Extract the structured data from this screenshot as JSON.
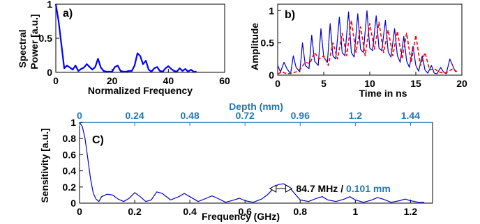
{
  "chart_data": [
    {
      "panel": "a)",
      "type": "line",
      "xlabel": "Normalized Frequency",
      "ylabel": [
        "Spectral",
        "Power [a.u.]"
      ],
      "xlim": [
        0,
        60
      ],
      "ylim": [
        0,
        1
      ],
      "xticks": [
        "0",
        "20",
        "40",
        "60"
      ],
      "yticks": [
        "0",
        "0.5",
        "1"
      ],
      "series": [
        {
          "color": "#0000ff",
          "x": [
            0,
            1,
            2,
            3,
            4,
            5,
            6,
            7,
            8,
            9,
            10,
            11,
            12,
            13,
            14,
            15,
            16,
            17,
            18,
            19,
            20,
            21,
            22,
            23,
            24,
            25,
            26,
            27,
            28,
            29,
            30,
            31,
            32,
            33,
            34,
            35,
            36,
            37,
            38,
            39,
            40,
            41,
            42,
            43,
            44,
            45,
            46,
            47,
            48,
            49,
            50
          ],
          "y": [
            1.0,
            0.75,
            0.4,
            0.06,
            0.1,
            0.07,
            0.04,
            0.1,
            0.02,
            0.05,
            0.07,
            0.12,
            0.08,
            0.04,
            0.08,
            0.2,
            0.07,
            0.02,
            0.01,
            0.01,
            0.01,
            0.08,
            0.1,
            0.02,
            0.01,
            0.01,
            0.02,
            0.02,
            0.1,
            0.28,
            0.24,
            0.12,
            0.17,
            0.04,
            0.01,
            0.06,
            0.08,
            0.02,
            0.01,
            0.06,
            0.09,
            0.05,
            0.02,
            0.01,
            0.06,
            0.02,
            0.05,
            0.01,
            0.04,
            0.01,
            0.01
          ]
        }
      ]
    },
    {
      "panel": "b)",
      "type": "line",
      "xlabel": "Time in ns",
      "ylabel": [
        "Amplitude"
      ],
      "xlim": [
        0,
        20
      ],
      "ylim": [
        0,
        1.1
      ],
      "xticks": [
        "0",
        "5",
        "10",
        "15",
        "20"
      ],
      "yticks": [
        "0",
        "0.5",
        "1"
      ],
      "series": [
        {
          "color": "#0000cc",
          "style": "solid",
          "x": [
            0,
            0.3,
            0.7,
            1.0,
            1.4,
            1.7,
            2.0,
            2.4,
            2.7,
            3.0,
            3.4,
            3.7,
            4.0,
            4.4,
            4.7,
            5.0,
            5.4,
            5.7,
            6.0,
            6.3,
            6.7,
            7.0,
            7.3,
            7.7,
            8.0,
            8.3,
            8.7,
            9.0,
            9.3,
            9.7,
            10.0,
            10.3,
            10.7,
            11.0,
            11.3,
            11.7,
            12.0,
            12.3,
            12.7,
            13.0,
            13.3,
            13.7,
            14.0,
            14.3,
            14.7,
            15.0,
            15.3,
            15.7,
            16.0,
            16.3,
            16.7,
            17.0,
            17.3,
            17.7,
            18.0,
            18.3,
            18.7,
            19.0,
            19.3
          ],
          "y": [
            0.15,
            0.05,
            0.2,
            0.1,
            0.02,
            0.3,
            0.12,
            0.05,
            0.5,
            0.15,
            0.1,
            0.62,
            0.22,
            0.15,
            0.72,
            0.28,
            0.2,
            0.8,
            0.3,
            0.25,
            0.9,
            0.35,
            0.3,
            0.98,
            0.35,
            0.28,
            0.95,
            0.4,
            0.35,
            1.0,
            0.42,
            0.38,
            0.92,
            0.42,
            0.38,
            0.85,
            0.36,
            0.28,
            0.72,
            0.3,
            0.2,
            0.6,
            0.22,
            0.12,
            0.45,
            0.15,
            0.06,
            0.3,
            0.08,
            0.03,
            0.15,
            0.03,
            0.02,
            0.12,
            0.05,
            0.02,
            0.25,
            0.15,
            0.05
          ]
        },
        {
          "color": "#ff0000",
          "style": "dashed",
          "x": [
            0,
            0.5,
            1.0,
            1.5,
            2.0,
            2.5,
            3.0,
            3.5,
            4.0,
            4.5,
            5.0,
            5.5,
            6.0,
            6.5,
            7.0,
            7.5,
            8.0,
            8.5,
            9.0,
            9.5,
            10.0,
            10.5,
            11.0,
            11.5,
            12.0,
            12.5,
            13.0,
            13.5,
            14.0,
            14.5,
            15.0,
            15.5,
            16.0,
            16.5,
            17.0,
            17.5,
            18.0,
            18.5,
            19.0,
            19.5
          ],
          "y": [
            0.02,
            0.05,
            0.02,
            0.03,
            0.05,
            0.1,
            0.2,
            0.18,
            0.35,
            0.25,
            0.3,
            0.15,
            0.5,
            0.25,
            0.65,
            0.3,
            0.85,
            0.35,
            0.75,
            0.3,
            0.8,
            0.4,
            0.82,
            0.35,
            0.7,
            0.3,
            0.68,
            0.25,
            0.65,
            0.2,
            0.62,
            0.15,
            0.35,
            0.08,
            0.1,
            0.05,
            0.03,
            0.05,
            0.1,
            0.05
          ]
        }
      ]
    },
    {
      "panel": "C)",
      "type": "line",
      "xlabel": "Frequency (GHz)",
      "ylabel": [
        "Sensitivity [a.u.]"
      ],
      "x2label": "Depth (mm)",
      "xlim": [
        0,
        1.28
      ],
      "ylim": [
        0,
        1
      ],
      "xticks": [
        "0",
        "0.2",
        "0.4",
        "0.6",
        "0.8",
        "1",
        "1.2"
      ],
      "x2ticks": [
        "0",
        "0.24",
        "0.48",
        "0.72",
        "0.96",
        "1.2",
        "1.44"
      ],
      "yticks": [
        "0",
        "0.2",
        "0.4",
        "0.6",
        "0.8",
        "1"
      ],
      "annotation": {
        "freq_text": "84.7 MHz",
        "sep_text": " / ",
        "depth_text": "0.101 mm",
        "x_from": 0.69,
        "x_to": 0.77,
        "y": 0.18
      },
      "series": [
        {
          "color": "#0000cc",
          "x": [
            0,
            0.01,
            0.02,
            0.03,
            0.04,
            0.05,
            0.06,
            0.07,
            0.08,
            0.1,
            0.12,
            0.14,
            0.16,
            0.18,
            0.2,
            0.22,
            0.24,
            0.26,
            0.28,
            0.3,
            0.33,
            0.36,
            0.38,
            0.4,
            0.43,
            0.46,
            0.48,
            0.5,
            0.53,
            0.56,
            0.58,
            0.6,
            0.63,
            0.66,
            0.68,
            0.7,
            0.72,
            0.74,
            0.76,
            0.78,
            0.8,
            0.83,
            0.86,
            0.88,
            0.9,
            0.93,
            0.96,
            0.98,
            1.0,
            1.03,
            1.06,
            1.08,
            1.1,
            1.13,
            1.16,
            1.18,
            1.2,
            1.23,
            1.25
          ],
          "y": [
            1.0,
            0.95,
            0.8,
            0.55,
            0.3,
            0.12,
            0.05,
            0.02,
            0.08,
            0.11,
            0.1,
            0.05,
            0.02,
            0.06,
            0.13,
            0.08,
            0.02,
            0.04,
            0.14,
            0.12,
            0.04,
            0.08,
            0.12,
            0.08,
            0.02,
            0.06,
            0.09,
            0.06,
            0.01,
            0.04,
            0.06,
            0.03,
            0.01,
            0.05,
            0.1,
            0.17,
            0.23,
            0.24,
            0.2,
            0.12,
            0.04,
            0.02,
            0.06,
            0.08,
            0.04,
            0.02,
            0.05,
            0.08,
            0.04,
            0.01,
            0.04,
            0.07,
            0.05,
            0.01,
            0.03,
            0.05,
            0.03,
            0.01,
            0.01
          ]
        }
      ]
    }
  ]
}
